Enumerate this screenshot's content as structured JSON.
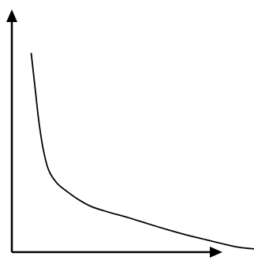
{
  "chart_data": {
    "type": "line",
    "title": "",
    "xlabel": "",
    "ylabel": "",
    "grid": false,
    "ticks": false,
    "axis_color": "#000000",
    "line_color": "#000000",
    "xlim": [
      0,
      1
    ],
    "ylim": [
      0,
      1
    ],
    "series": [
      {
        "x": [
          0.08,
          0.096,
          0.111,
          0.129,
          0.152,
          0.186,
          0.229,
          0.28,
          0.331,
          0.4,
          0.48,
          0.56,
          0.64,
          0.72,
          0.8,
          0.88,
          0.94,
          1.0
        ],
        "y": [
          0.92,
          0.76,
          0.61,
          0.48,
          0.38,
          0.32,
          0.28,
          0.24,
          0.21,
          0.185,
          0.16,
          0.132,
          0.105,
          0.08,
          0.058,
          0.036,
          0.022,
          0.015
        ]
      }
    ]
  }
}
